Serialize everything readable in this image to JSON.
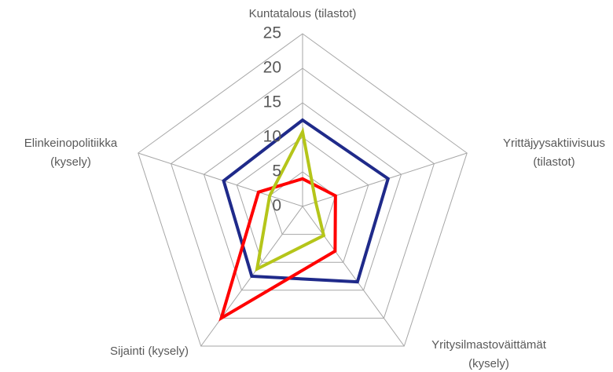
{
  "chart_data": {
    "type": "radar",
    "categories": [
      [
        "Kuntatalous (tilastot)"
      ],
      [
        "Yrittäjyysaktiivisuus",
        "(tilastot)"
      ],
      [
        "Yritysilmastoväittämät",
        "(kysely)"
      ],
      [
        "Sijainti (kysely)"
      ],
      [
        "Elinkeinopolitiikka",
        "(kysely)"
      ]
    ],
    "series": [
      {
        "color": "#1f2a8a",
        "values": [
          12.5,
          13,
          13.5,
          12.5,
          12
        ]
      },
      {
        "color": "#ff0000",
        "values": [
          4,
          5,
          8,
          20,
          6.7
        ]
      },
      {
        "color": "#b5c51a",
        "values": [
          10.8,
          2,
          5.2,
          11.2,
          5
        ]
      }
    ],
    "ylim": [
      0,
      25
    ],
    "yticks": [
      0,
      5,
      10,
      15,
      20,
      25
    ],
    "grid": true
  }
}
